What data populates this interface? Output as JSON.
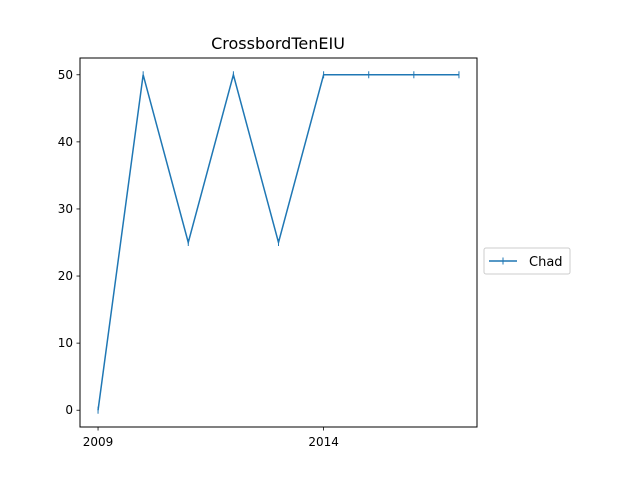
{
  "chart_data": {
    "type": "line",
    "title": "CrossbordTenEIU",
    "xlabel": "",
    "ylabel": "",
    "x": [
      2009,
      2010,
      2011,
      2012,
      2013,
      2014,
      2015,
      2016,
      2017
    ],
    "x_tick_labels": [
      "2009",
      "2014"
    ],
    "x_ticks": [
      2009,
      2014
    ],
    "xlim": [
      2008.6,
      2017.4
    ],
    "y_ticks": [
      0,
      10,
      20,
      30,
      40,
      50
    ],
    "y_tick_labels": [
      "0",
      "10",
      "20",
      "30",
      "40",
      "50"
    ],
    "ylim": [
      -2.5,
      52.5
    ],
    "grid": false,
    "legend_placement": "center-right outside",
    "series": [
      {
        "name": "Chad",
        "color": "#1f77b4",
        "marker": "vertical-tick",
        "values": [
          0,
          50,
          25,
          50,
          25,
          50,
          50,
          50,
          50
        ]
      }
    ]
  }
}
